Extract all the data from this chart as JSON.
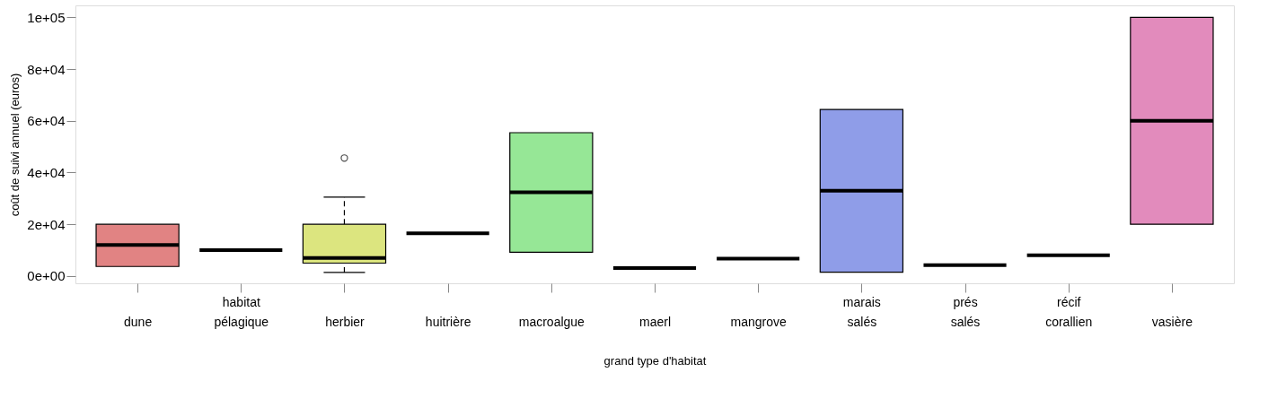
{
  "chart_data": {
    "type": "box",
    "xlabel": "grand type d'habitat",
    "ylabel": "coût de suivi annuel (euros)",
    "categories": [
      "dune",
      "habitat pélagique",
      "herbier",
      "huitrière",
      "macroalgue",
      "maerl",
      "mangrove",
      "marais salés",
      "prés salés",
      "récif corallien",
      "vasière"
    ],
    "boxes": [
      {
        "low": 3700,
        "q1": 3700,
        "median": 12000,
        "q3": 20000,
        "high": 20000
      },
      {
        "low": 10000,
        "q1": 10000,
        "median": 10000,
        "q3": 10000,
        "high": 10000
      },
      {
        "low": 1400,
        "q1": 5000,
        "median": 7000,
        "q3": 20000,
        "high": 30500,
        "outliers": [
          45600
        ]
      },
      {
        "low": 16500,
        "q1": 16500,
        "median": 16500,
        "q3": 16500,
        "high": 16500
      },
      {
        "low": 9200,
        "q1": 9200,
        "median": 32400,
        "q3": 55400,
        "high": 55400
      },
      {
        "low": 3100,
        "q1": 3100,
        "median": 3100,
        "q3": 3100,
        "high": 3100
      },
      {
        "low": 6700,
        "q1": 6700,
        "median": 6700,
        "q3": 6700,
        "high": 6700
      },
      {
        "low": 1500,
        "q1": 1500,
        "median": 33000,
        "q3": 64400,
        "high": 64400
      },
      {
        "low": 4200,
        "q1": 4200,
        "median": 4200,
        "q3": 4200,
        "high": 4200
      },
      {
        "low": 8000,
        "q1": 8000,
        "median": 8000,
        "q3": 8000,
        "high": 8000
      },
      {
        "low": 20000,
        "q1": 20000,
        "median": 60000,
        "q3": 100000,
        "high": 100000
      }
    ],
    "colors": [
      "#e18383",
      null,
      "#dce57f",
      null,
      "#96e796",
      null,
      null,
      "#8f9de8",
      null,
      null,
      "#e28bbc"
    ],
    "ylim": [
      -2800,
      104600
    ],
    "yticks": [
      {
        "value": 0,
        "label": "0e+00"
      },
      {
        "value": 20000,
        "label": "2e+04"
      },
      {
        "value": 40000,
        "label": "4e+04"
      },
      {
        "value": 60000,
        "label": "6e+04"
      },
      {
        "value": 80000,
        "label": "8e+04"
      },
      {
        "value": 100000,
        "label": "1e+05"
      }
    ],
    "grid": false
  }
}
